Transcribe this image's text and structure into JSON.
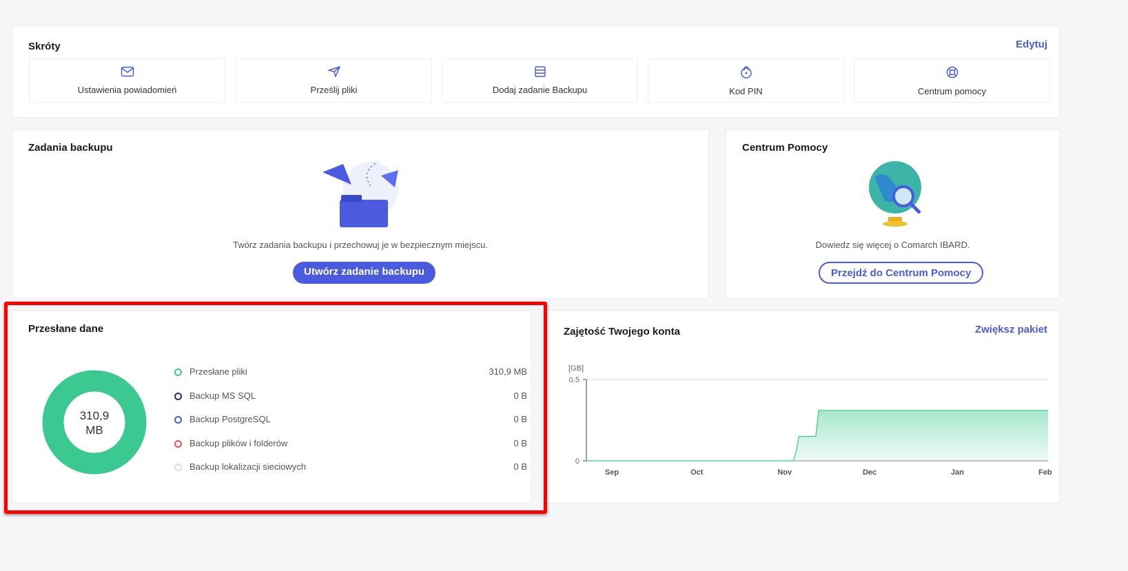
{
  "shortcuts": {
    "title": "Skróty",
    "edit": "Edytuj",
    "items": [
      {
        "label": "Ustawienia powiadomień",
        "icon": "mail-icon"
      },
      {
        "label": "Prześlij pliki",
        "icon": "send-icon"
      },
      {
        "label": "Dodaj zadanie Backupu",
        "icon": "server-list-icon"
      },
      {
        "label": "Kod PIN",
        "icon": "lock-icon"
      },
      {
        "label": "Centrum pomocy",
        "icon": "lifebuoy-icon"
      }
    ]
  },
  "backup_tasks": {
    "title": "Zadania backupu",
    "description": "Twórz zadania backupu i przechowuj je w bezpiecznym miejscu.",
    "button": "Utwórz zadanie backupu"
  },
  "help": {
    "title": "Centrum Pomocy",
    "description": "Dowiedz się więcej o Comarch IBARD.",
    "button": "Przejdź do Centrum Pomocy"
  },
  "sent_data": {
    "title": "Przesłane dane",
    "total_value": "310,9",
    "total_unit": "MB",
    "items": [
      {
        "label": "Przesłane pliki",
        "value": "310,9 MB",
        "color": "#3cc991"
      },
      {
        "label": "Backup MS SQL",
        "value": "0 B",
        "color": "#1f2a80"
      },
      {
        "label": "Backup PostgreSQL",
        "value": "0 B",
        "color": "#4a5be0"
      },
      {
        "label": "Backup plików i folderów",
        "value": "0 B",
        "color": "#f0505a"
      },
      {
        "label": "Backup lokalizacji sieciowych",
        "value": "0 B",
        "color": "#dcdcf5"
      }
    ]
  },
  "usage": {
    "title": "Zajętość Twojego konta",
    "upgrade": "Zwiększ pakiet"
  },
  "chart_data": {
    "type": "area",
    "ylabel": "[GB]",
    "ylim": [
      0,
      0.5
    ],
    "yticks": [
      "0",
      "0.5"
    ],
    "xticks": [
      "Sep",
      "Oct",
      "Nov",
      "Dec",
      "Jan",
      "Feb"
    ],
    "x": [
      "Aug 23",
      "Nov 4",
      "Nov 5",
      "Nov 6",
      "Nov 12",
      "Nov 13",
      "Feb 2"
    ],
    "values": [
      0,
      0,
      0.05,
      0.15,
      0.15,
      0.31,
      0.31
    ],
    "color": "#3cc991",
    "grid": false
  }
}
